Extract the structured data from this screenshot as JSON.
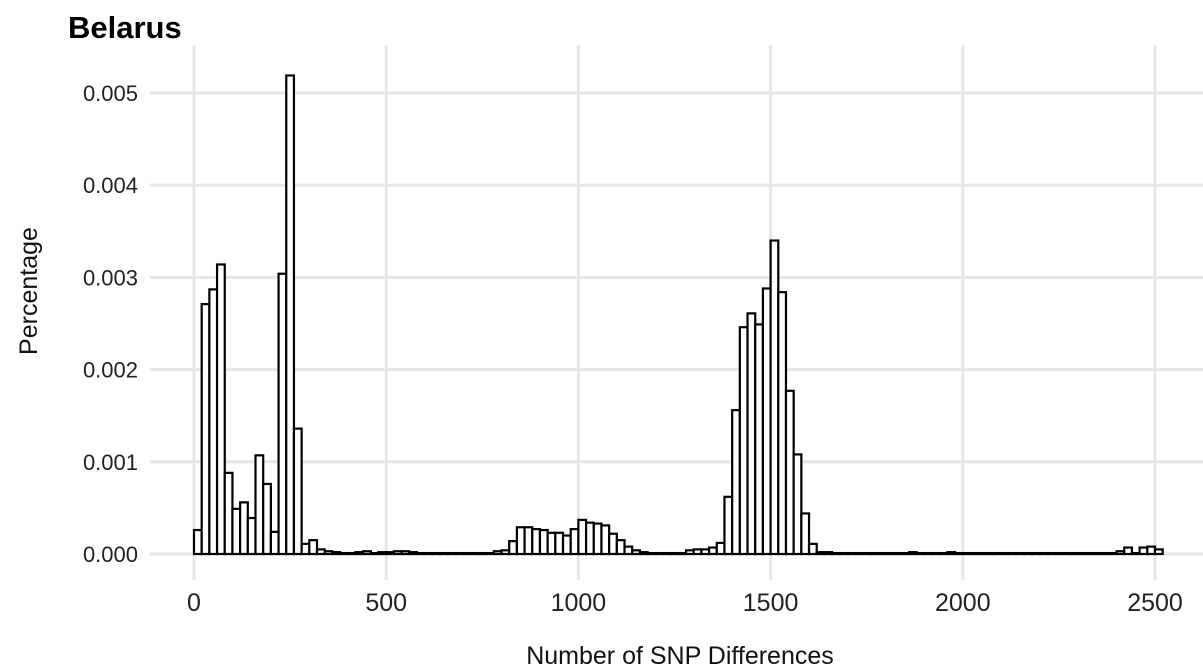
{
  "chart_data": {
    "type": "bar",
    "title": "Belarus",
    "xlabel": "Number of SNP Differences",
    "ylabel": "Percentage",
    "xlim": [
      -50,
      2550
    ],
    "ylim": [
      0,
      0.0052
    ],
    "x_ticks": [
      0,
      500,
      1000,
      1500,
      2000,
      2500
    ],
    "x_tick_labels": [
      "0",
      "500",
      "1000",
      "1500",
      "2000",
      "2500"
    ],
    "y_ticks": [
      0,
      0.001,
      0.002,
      0.003,
      0.004,
      0.005
    ],
    "y_tick_labels": [
      "0.000",
      "0.001",
      "0.002",
      "0.003",
      "0.004",
      "0.005"
    ],
    "grid": true,
    "bin_width": 20,
    "bin_start": 0,
    "values": [
      0.00026,
      0.00271,
      0.00287,
      0.00314,
      0.00088,
      0.00049,
      0.00056,
      0.00039,
      0.00107,
      0.00076,
      0.00024,
      0.00304,
      0.00519,
      0.00136,
      0.00011,
      0.00015,
      5e-05,
      3e-05,
      2e-05,
      1e-05,
      1e-05,
      2e-05,
      3e-05,
      1e-05,
      2e-05,
      2e-05,
      3e-05,
      3e-05,
      2e-05,
      1e-05,
      1e-05,
      1e-05,
      1e-05,
      1e-05,
      1e-05,
      1e-05,
      1e-05,
      1e-05,
      1e-05,
      3e-05,
      4e-05,
      0.00014,
      0.00029,
      0.00029,
      0.00027,
      0.00026,
      0.00023,
      0.00023,
      0.0002,
      0.00027,
      0.00037,
      0.00034,
      0.00033,
      0.00031,
      0.00022,
      0.00015,
      8e-05,
      4e-05,
      2e-05,
      1e-05,
      1e-05,
      1e-05,
      1e-05,
      1e-05,
      4e-05,
      5e-05,
      5e-05,
      7e-05,
      0.00012,
      0.00062,
      0.00156,
      0.00246,
      0.00261,
      0.00249,
      0.00288,
      0.0034,
      0.00284,
      0.00177,
      0.00108,
      0.00044,
      0.00011,
      2e-05,
      2e-05,
      1e-05,
      1e-05,
      1e-05,
      1e-05,
      1e-05,
      1e-05,
      1e-05,
      1e-05,
      1e-05,
      1e-05,
      2e-05,
      1e-05,
      1e-05,
      1e-05,
      1e-05,
      2e-05,
      1e-05,
      1e-05,
      1e-05,
      1e-05,
      1e-05,
      1e-05,
      1e-05,
      1e-05,
      1e-05,
      1e-05,
      1e-05,
      1e-05,
      1e-05,
      1e-05,
      1e-05,
      1e-05,
      1e-05,
      1e-05,
      1e-05,
      1e-05,
      1e-05,
      3e-05,
      7e-05,
      1e-05,
      7e-05,
      8e-05,
      5e-05
    ]
  }
}
